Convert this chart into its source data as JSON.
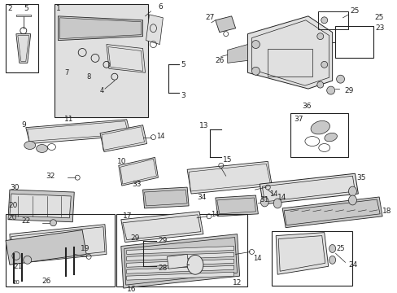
{
  "bg_color": "#ffffff",
  "line_color": "#222222",
  "gray_fill": "#c8c8c8",
  "light_fill": "#e0e0e0",
  "figsize": [
    4.89,
    3.6
  ],
  "dpi": 100
}
